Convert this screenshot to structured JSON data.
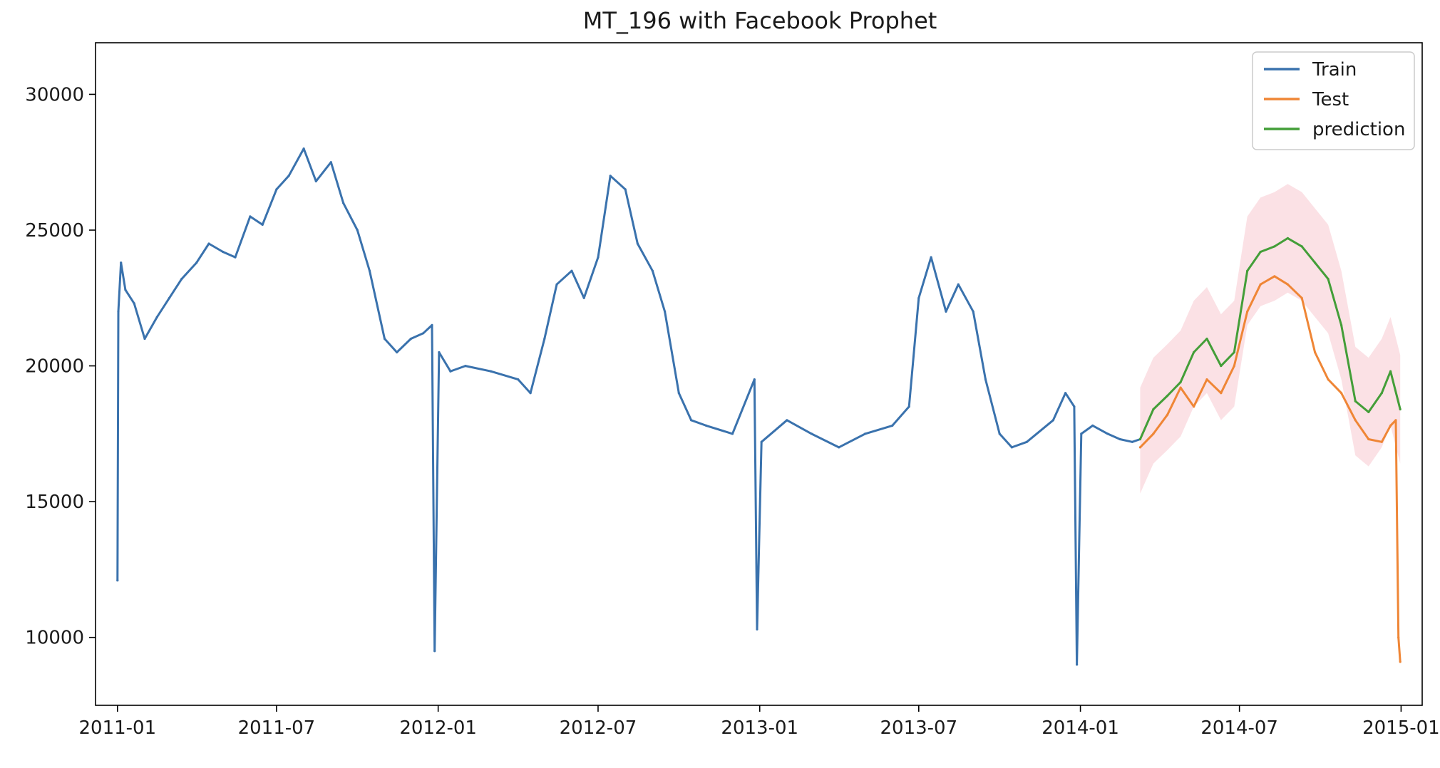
{
  "chart_data": {
    "type": "line",
    "title": "MT_196 with Facebook Prophet",
    "xlabel": "",
    "ylabel": "",
    "x_type": "date",
    "xlim": [
      "2010-12-07",
      "2015-01-25"
    ],
    "ylim": [
      7500,
      31900
    ],
    "x_ticks": [
      "2011-01-01",
      "2011-07-01",
      "2012-01-01",
      "2012-07-01",
      "2013-01-01",
      "2013-07-01",
      "2014-01-01",
      "2014-07-01",
      "2015-01-01"
    ],
    "x_tick_labels": [
      "2011-01",
      "2011-07",
      "2012-01",
      "2012-07",
      "2013-01",
      "2013-07",
      "2014-01",
      "2014-07",
      "2015-01"
    ],
    "y_ticks": [
      10000,
      15000,
      20000,
      25000,
      30000
    ],
    "y_tick_labels": [
      "10000",
      "15000",
      "20000",
      "25000",
      "30000"
    ],
    "grid": false,
    "legend_position": "top-right",
    "series": [
      {
        "name": "Train",
        "color": "#3a72ad",
        "x": [
          "2011-01-01",
          "2011-01-02",
          "2011-01-05",
          "2011-01-10",
          "2011-01-20",
          "2011-02-01",
          "2011-02-15",
          "2011-03-01",
          "2011-03-15",
          "2011-04-01",
          "2011-04-15",
          "2011-05-01",
          "2011-05-15",
          "2011-06-01",
          "2011-06-15",
          "2011-07-01",
          "2011-07-15",
          "2011-08-01",
          "2011-08-15",
          "2011-09-01",
          "2011-09-15",
          "2011-10-01",
          "2011-10-15",
          "2011-11-01",
          "2011-11-15",
          "2011-12-01",
          "2011-12-15",
          "2011-12-25",
          "2011-12-28",
          "2012-01-02",
          "2012-01-15",
          "2012-02-01",
          "2012-03-01",
          "2012-04-01",
          "2012-04-15",
          "2012-05-01",
          "2012-05-15",
          "2012-06-01",
          "2012-06-15",
          "2012-07-01",
          "2012-07-15",
          "2012-08-01",
          "2012-08-15",
          "2012-09-01",
          "2012-09-15",
          "2012-10-01",
          "2012-10-15",
          "2012-11-01",
          "2012-12-01",
          "2012-12-26",
          "2012-12-29",
          "2013-01-03",
          "2013-02-01",
          "2013-03-01",
          "2013-04-01",
          "2013-05-01",
          "2013-06-01",
          "2013-06-20",
          "2013-07-01",
          "2013-07-15",
          "2013-08-01",
          "2013-08-15",
          "2013-09-01",
          "2013-09-15",
          "2013-10-01",
          "2013-10-15",
          "2013-11-01",
          "2013-12-01",
          "2013-12-15",
          "2013-12-25",
          "2013-12-28",
          "2014-01-02",
          "2014-01-15",
          "2014-02-01",
          "2014-02-15",
          "2014-03-01",
          "2014-03-10"
        ],
        "values": [
          12100,
          22000,
          23800,
          22800,
          22300,
          21000,
          21800,
          22500,
          23200,
          23800,
          24500,
          24200,
          24000,
          25500,
          25200,
          26500,
          27000,
          28000,
          26800,
          27500,
          26000,
          25000,
          23500,
          21000,
          20500,
          21000,
          21200,
          21500,
          9500,
          20500,
          19800,
          20000,
          19800,
          19500,
          19000,
          21000,
          23000,
          23500,
          22500,
          24000,
          27000,
          26500,
          24500,
          23500,
          22000,
          19000,
          18000,
          17800,
          17500,
          19500,
          10300,
          17200,
          18000,
          17500,
          17000,
          17500,
          17800,
          18500,
          22500,
          24000,
          22000,
          23000,
          22000,
          19500,
          17500,
          17000,
          17200,
          18000,
          19000,
          18500,
          9000,
          17500,
          17800,
          17500,
          17300,
          17200,
          17300
        ]
      },
      {
        "name": "Test",
        "color": "#ef8636",
        "x": [
          "2014-03-10",
          "2014-03-25",
          "2014-04-10",
          "2014-04-25",
          "2014-05-10",
          "2014-05-25",
          "2014-06-10",
          "2014-06-25",
          "2014-07-10",
          "2014-07-25",
          "2014-08-10",
          "2014-08-25",
          "2014-09-10",
          "2014-09-25",
          "2014-10-10",
          "2014-10-25",
          "2014-11-10",
          "2014-11-25",
          "2014-12-10",
          "2014-12-20",
          "2014-12-26",
          "2014-12-29",
          "2014-12-31"
        ],
        "values": [
          17000,
          17500,
          18200,
          19200,
          18500,
          19500,
          19000,
          20000,
          22000,
          23000,
          23300,
          23000,
          22500,
          20500,
          19500,
          19000,
          18000,
          17300,
          17200,
          17800,
          18000,
          10000,
          9100
        ]
      },
      {
        "name": "prediction",
        "color": "#439e38",
        "x": [
          "2014-03-10",
          "2014-03-25",
          "2014-04-10",
          "2014-04-25",
          "2014-05-10",
          "2014-05-25",
          "2014-06-10",
          "2014-06-25",
          "2014-07-10",
          "2014-07-25",
          "2014-08-10",
          "2014-08-25",
          "2014-09-10",
          "2014-09-25",
          "2014-10-10",
          "2014-10-25",
          "2014-11-10",
          "2014-11-25",
          "2014-12-10",
          "2014-12-20",
          "2014-12-31"
        ],
        "values": [
          17300,
          18400,
          18900,
          19400,
          20500,
          21000,
          20000,
          20500,
          23500,
          24200,
          24400,
          24700,
          24400,
          23800,
          23200,
          21500,
          18700,
          18300,
          19000,
          19800,
          18400
        ]
      }
    ],
    "band": {
      "color": "#f7c8cf",
      "x": [
        "2014-03-10",
        "2014-03-25",
        "2014-04-10",
        "2014-04-25",
        "2014-05-10",
        "2014-05-25",
        "2014-06-10",
        "2014-06-25",
        "2014-07-10",
        "2014-07-25",
        "2014-08-10",
        "2014-08-25",
        "2014-09-10",
        "2014-09-25",
        "2014-10-10",
        "2014-10-25",
        "2014-11-10",
        "2014-11-25",
        "2014-12-10",
        "2014-12-20",
        "2014-12-31"
      ],
      "upper": [
        19200,
        20300,
        20800,
        21300,
        22400,
        22900,
        21900,
        22400,
        25500,
        26200,
        26400,
        26700,
        26400,
        25800,
        25200,
        23500,
        20700,
        20300,
        21000,
        21800,
        20400
      ],
      "lower": [
        15300,
        16400,
        16900,
        17400,
        18500,
        19000,
        18000,
        18500,
        21500,
        22200,
        22400,
        22700,
        22400,
        21800,
        21200,
        19500,
        16700,
        16300,
        17000,
        17800,
        16400
      ]
    }
  }
}
